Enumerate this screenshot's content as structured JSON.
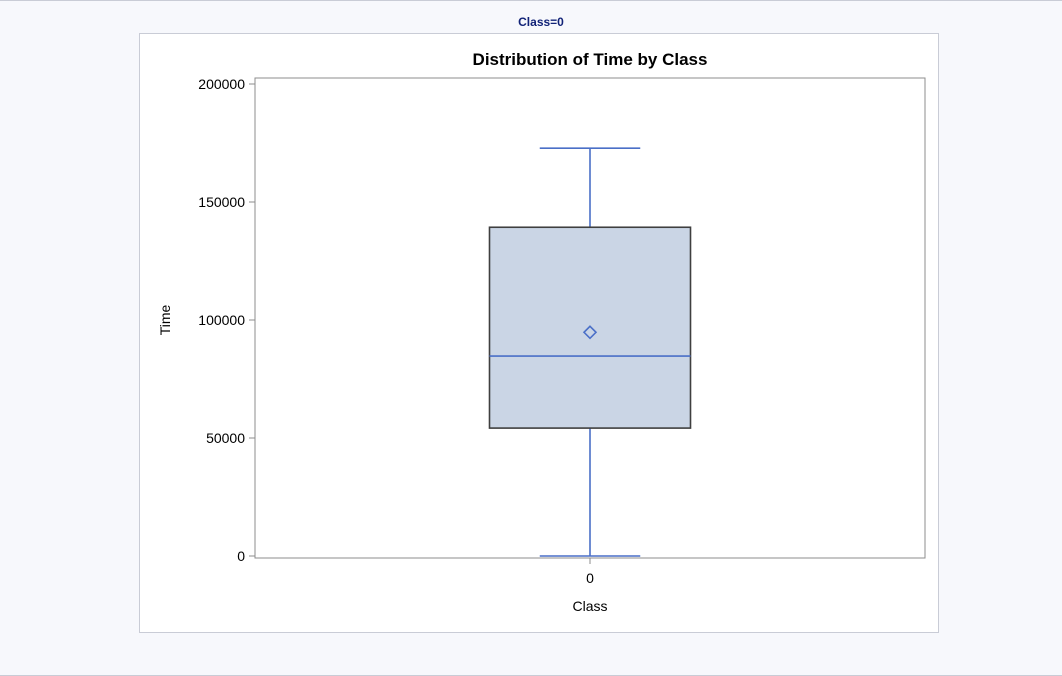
{
  "page": {
    "by_group_label": "Class=0"
  },
  "chart_data": {
    "type": "box",
    "title": "Distribution of Time by Class",
    "xlabel": "Class",
    "ylabel": "Time",
    "categories": [
      "0"
    ],
    "ylim": [
      0,
      200000
    ],
    "yticks": [
      0,
      50000,
      100000,
      150000,
      200000
    ],
    "ytick_labels": [
      "0",
      "50000",
      "100000",
      "150000",
      "200000"
    ],
    "boxes": [
      {
        "category": "0",
        "min": 0,
        "q1": 54200,
        "median": 84700,
        "mean": 94800,
        "q3": 139300,
        "max": 172800
      }
    ],
    "colors": {
      "box_fill": "#cad5e5",
      "box_outline": "#3f3f3f",
      "whisker": "#4a6fc7",
      "median": "#4a6fc7",
      "mean_marker": "#4a6fc7",
      "axis": "#8c8c8c"
    }
  }
}
